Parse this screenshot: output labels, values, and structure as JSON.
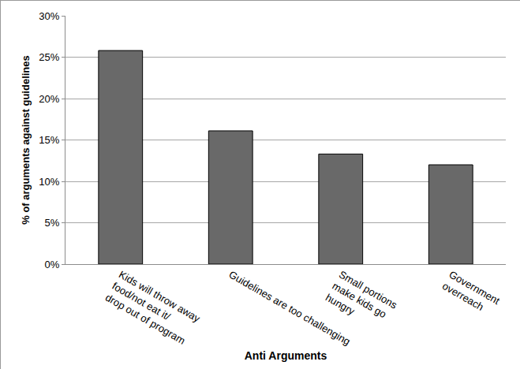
{
  "chart_data": {
    "type": "bar",
    "xlabel": "Anti Arguments",
    "ylabel": "% of arguments against guidelines",
    "categories": [
      "Kids will throw away\nfood/not eat it/\ndrop out of program",
      "Guidelines are too challenging",
      "Small portions\nmake kids go\nhungry",
      "Government\noverreach"
    ],
    "values": [
      25.8,
      16.1,
      13.3,
      12.0
    ],
    "color": "#696969",
    "ylim": [
      0,
      30
    ],
    "yticks": [
      {
        "value": 0,
        "label": "0%"
      },
      {
        "value": 5,
        "label": "5%"
      },
      {
        "value": 10,
        "label": "10%"
      },
      {
        "value": 15,
        "label": "15%"
      },
      {
        "value": 20,
        "label": "20%"
      },
      {
        "value": 25,
        "label": "25%"
      },
      {
        "value": 30,
        "label": "30%"
      }
    ],
    "grid": true
  }
}
